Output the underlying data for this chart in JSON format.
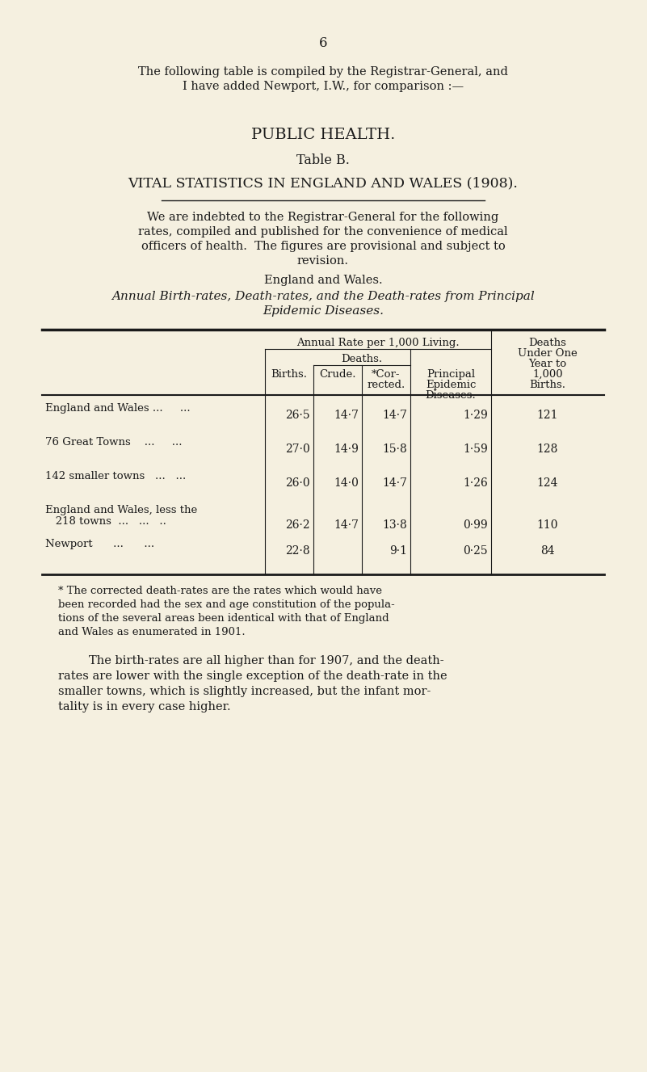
{
  "bg_color": "#f5f0e0",
  "page_number": "6",
  "intro_text_line1": "The following table is compiled by the Registrar-General, and",
  "intro_text_line2": "I have added Newport, I.W., for comparison :—",
  "heading1": "PUBLIC HEALTH.",
  "heading2": "Table B.",
  "heading3": "VITAL STATISTICS IN ENGLAND AND WALES (1908).",
  "body_text_lines": [
    "We are indebted to the Registrar-General for the following",
    "rates, compiled and published for the convenience of medical",
    "officers of health.  The figures are provisional and subject to",
    "revision."
  ],
  "subheading1": "England and Wales.",
  "italic_heading_line1": "Annual Birth-rates, Death-rates, and the Death-rates from Principal",
  "italic_heading_line2": "Epidemic Diseases.",
  "rows": [
    {
      "label_line1": "England and Wales ...     ...",
      "label_line2": "",
      "births": "26·5",
      "crude": "14·7",
      "corrected": "14·7",
      "epidemic": "1·29",
      "deaths_under": "121"
    },
    {
      "label_line1": "76 Great Towns    ...     ...",
      "label_line2": "",
      "births": "27·0",
      "crude": "14·9",
      "corrected": "15·8",
      "epidemic": "1·59",
      "deaths_under": "128"
    },
    {
      "label_line1": "142 smaller towns   ...   ...",
      "label_line2": "",
      "births": "26·0",
      "crude": "14·0",
      "corrected": "14·7",
      "epidemic": "1·26",
      "deaths_under": "124"
    },
    {
      "label_line1": "England and Wales, less the",
      "label_line2": "   218 towns  ...   ...   ..",
      "births": "26·2",
      "crude": "14·7",
      "corrected": "13·8",
      "epidemic": "0·99",
      "deaths_under": "110"
    },
    {
      "label_line1": "Newport      ...      ...",
      "label_line2": "",
      "births": "22·8",
      "crude": "",
      "corrected": "9·1",
      "epidemic": "0·25",
      "deaths_under": "84"
    }
  ],
  "footnote_lines": [
    "* The corrected death-rates are the rates which would have",
    "been recorded had the sex and age constitution of the popula-",
    "tions of the several areas been identical with that of England",
    "and Wales as enumerated in 1901."
  ],
  "closing_text_lines": [
    "The birth-rates are all higher than for 1907, and the death-",
    "rates are lower with the single exception of the death-rate in the",
    "smaller towns, which is slightly increased, but the infant mor-",
    "tality is in every case higher."
  ]
}
